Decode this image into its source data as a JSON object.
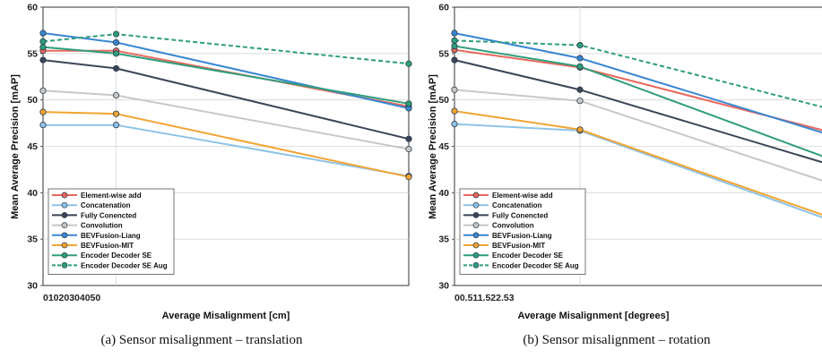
{
  "chart_data": [
    {
      "type": "line",
      "caption": "(a) Sensor misalignment – translation",
      "xlabel": "Average Misalignment [cm]",
      "ylabel": "Mean Average Precision [mAP]",
      "x_ticklabel": "01020304050",
      "y_ticks": [
        "30",
        "35",
        "40",
        "45",
        "50",
        "55",
        "60"
      ],
      "x": [
        0,
        10,
        50
      ],
      "ylim": [
        30,
        60
      ],
      "xlim": [
        0,
        50
      ],
      "grid": true,
      "legend_position": "lower-left",
      "series": [
        {
          "name": "Element-wise add",
          "color": "#e8685c",
          "dashed": false,
          "values": [
            55.3,
            55.3,
            49.3
          ]
        },
        {
          "name": "Concatenation",
          "color": "#8ec3e6",
          "dashed": false,
          "values": [
            47.3,
            47.3,
            41.8
          ]
        },
        {
          "name": "Fully Conencted",
          "color": "#3a4556",
          "dashed": false,
          "values": [
            54.3,
            53.4,
            45.8
          ]
        },
        {
          "name": "Convolution",
          "color": "#c8c8c8",
          "dashed": false,
          "values": [
            51.0,
            50.5,
            44.7
          ]
        },
        {
          "name": "BEVFusion-Liang",
          "color": "#3a87d2",
          "dashed": false,
          "values": [
            57.2,
            56.2,
            49.1
          ]
        },
        {
          "name": "BEVFusion-MIT",
          "color": "#f2a431",
          "dashed": false,
          "values": [
            48.7,
            48.5,
            41.7
          ]
        },
        {
          "name": "Encoder Decoder SE",
          "color": "#2e9e7c",
          "dashed": false,
          "values": [
            55.7,
            55.0,
            49.6
          ]
        },
        {
          "name": "Encoder Decoder SE Aug",
          "color": "#2e9e7c",
          "dashed": true,
          "values": [
            56.3,
            57.1,
            53.9
          ]
        }
      ]
    },
    {
      "type": "line",
      "caption": "(b) Sensor misalignment – rotation",
      "xlabel": "Average Misalignment [degrees]",
      "ylabel": "Mean Average Precision [mAP]",
      "x_ticklabel": "00.511.522.53",
      "y_ticks": [
        "30",
        "35",
        "40",
        "45",
        "50",
        "55",
        "60"
      ],
      "x": [
        0,
        1,
        3
      ],
      "ylim": [
        30,
        60
      ],
      "xlim": [
        0,
        3
      ],
      "grid": true,
      "legend_position": "lower-left",
      "series": [
        {
          "name": "Element-wise add",
          "color": "#e8685c",
          "dashed": false,
          "values": [
            55.4,
            53.5,
            46.5
          ]
        },
        {
          "name": "Concatenation",
          "color": "#8ec3e6",
          "dashed": false,
          "values": [
            47.4,
            46.7,
            37.0
          ]
        },
        {
          "name": "Fully Conencted",
          "color": "#3a4556",
          "dashed": false,
          "values": [
            54.3,
            51.1,
            43.0
          ]
        },
        {
          "name": "Convolution",
          "color": "#c8c8c8",
          "dashed": false,
          "values": [
            51.1,
            49.9,
            41.0
          ]
        },
        {
          "name": "BEVFusion-Liang",
          "color": "#3a87d2",
          "dashed": false,
          "values": [
            57.2,
            54.5,
            46.2
          ]
        },
        {
          "name": "BEVFusion-MIT",
          "color": "#f2a431",
          "dashed": false,
          "values": [
            48.8,
            46.8,
            37.3
          ]
        },
        {
          "name": "Encoder Decoder SE",
          "color": "#2e9e7c",
          "dashed": false,
          "values": [
            55.8,
            53.6,
            43.6
          ]
        },
        {
          "name": "Encoder Decoder SE Aug",
          "color": "#2e9e7c",
          "dashed": true,
          "values": [
            56.4,
            55.9,
            49.0
          ]
        }
      ]
    }
  ]
}
